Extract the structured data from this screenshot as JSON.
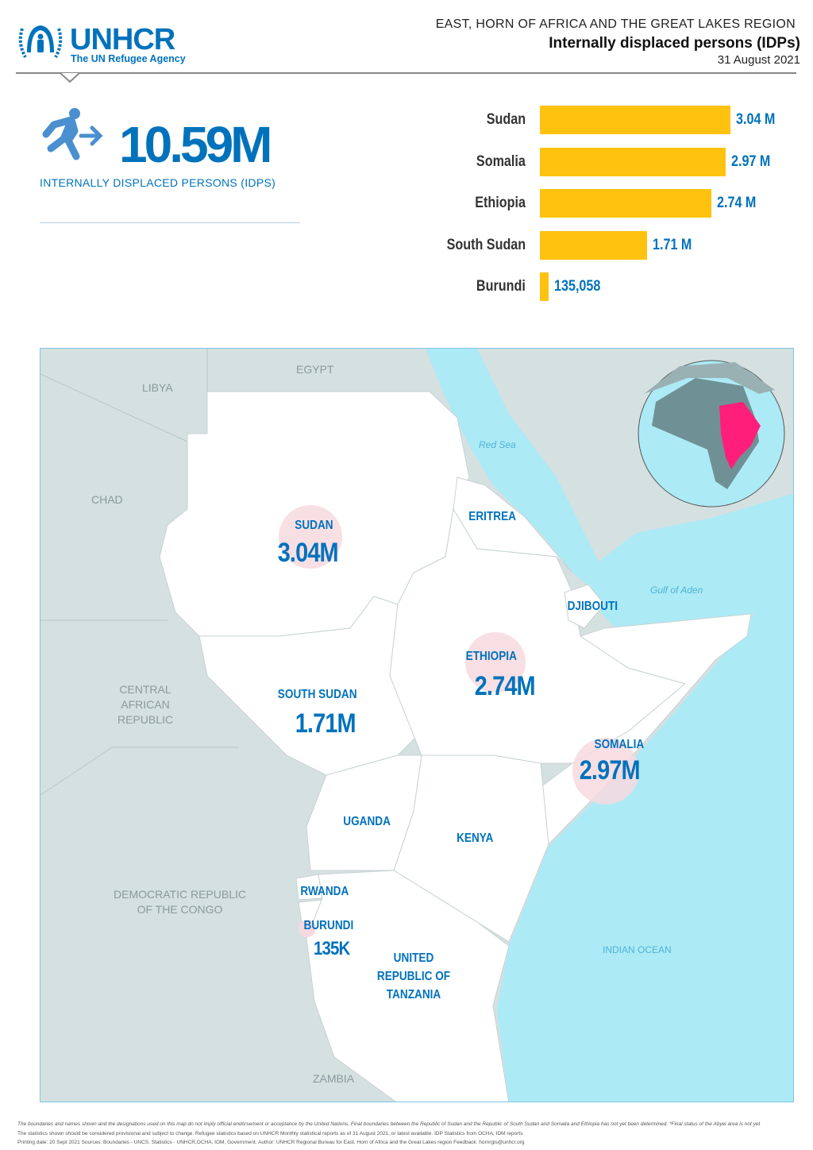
{
  "header": {
    "logo_word": "UNHCR",
    "logo_sub": "The UN Refugee Agency",
    "region": "EAST, HORN OF AFRICA AND THE GREAT LAKES REGION",
    "title": "Internally displaced persons (IDPs)",
    "date": "31 August 2021"
  },
  "kpi": {
    "value": "10.59M",
    "label": "INTERNALLY DISPLACED PERSONS (IDPS)",
    "icon": "person-running-arrow-icon"
  },
  "colors": {
    "brand": "#0072BC",
    "bar": "#FFC20E",
    "sea": "#ACEAF6",
    "land": "#D5E0E1",
    "highlight": "#FF1F7A"
  },
  "chart_data": {
    "type": "bar",
    "orientation": "horizontal",
    "categories": [
      "Sudan",
      "Somalia",
      "Ethiopia",
      "South Sudan",
      "Burundi"
    ],
    "values": [
      3040000,
      2970000,
      2740000,
      1710000,
      135058
    ],
    "data_labels": [
      "3.04 M",
      "2.97 M",
      "2.74 M",
      "1.71 M",
      "135,058"
    ]
  },
  "map": {
    "labels": {
      "libya": "LIBYA",
      "egypt": "EGYPT",
      "chad": "CHAD",
      "car": "CENTRAL AFRICAN REPUBLIC",
      "drc": "DEMOCRATIC REPUBLIC OF THE CONGO",
      "zambia": "ZAMBIA",
      "red_sea": "Red Sea",
      "gulf": "Gulf of Aden",
      "ocean": "INDIAN OCEAN"
    },
    "countries": {
      "sudan": {
        "name": "SUDAN",
        "value": "3.04M"
      },
      "south_sudan": {
        "name": "SOUTH SUDAN",
        "value": "1.71M"
      },
      "ethiopia": {
        "name": "ETHIOPIA",
        "value": "2.74M"
      },
      "somalia": {
        "name": "SOMALIA",
        "value": "2.97M"
      },
      "burundi": {
        "name": "BURUNDI",
        "value": "135K"
      },
      "eritrea": {
        "name": "ERITREA"
      },
      "djibouti": {
        "name": "DJIBOUTI"
      },
      "uganda": {
        "name": "UGANDA"
      },
      "kenya": {
        "name": "KENYA"
      },
      "rwanda": {
        "name": "RWANDA"
      },
      "tanzania": {
        "name": "UNITED REPUBLIC OF TANZANIA"
      }
    }
  },
  "footer": {
    "line1": "The boundaries and names shown and the designations used on this map do not imply official endorsement or acceptance by the United Nations. Final boundaries between the Republic of Sudan and the Republic of South Sudan and Somalia and Ethiopia has not yet been determined. *Final status of the Abyei area is not yet",
    "line2": "The statistics shown should be considered provisional and subject to change. Refugee statistics based on UNHCR Monthly statistical reports as of 31 August 2021, or latest available. IDP Statistics from OCHA, IDM reports",
    "line3": "Printing date: 20 Sept 2021     Sources: Boundaries - UNCS. Statistics - UNHCR,OCHA, IOM, Government.     Author: UNHCR Regional Bureau for East, Horn of Africa and the Great Lakes region     Feedback: hornrgis@unhcr.org"
  }
}
